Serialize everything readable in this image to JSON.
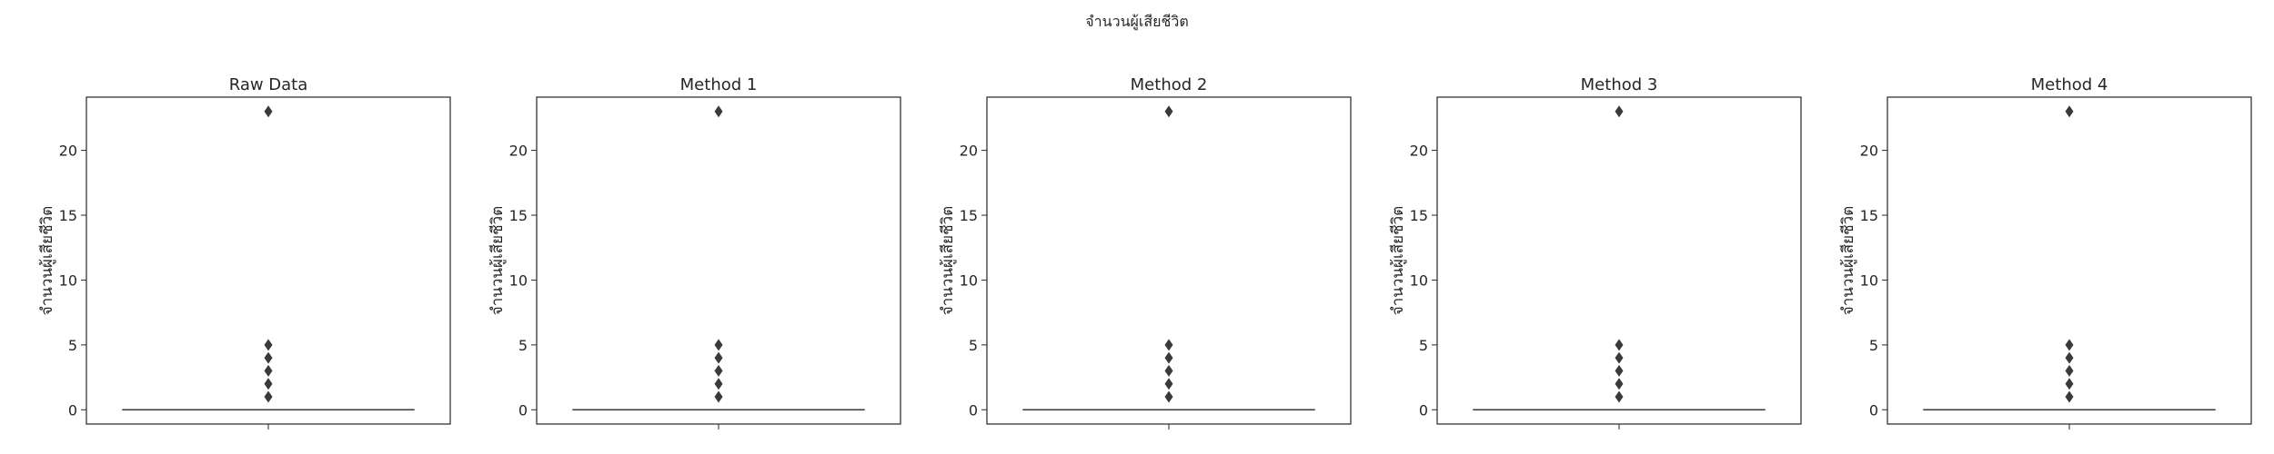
{
  "figure": {
    "suptitle": "จำนวนผู้เสียชีวิต"
  },
  "chart_data": [
    {
      "type": "box",
      "title": "Raw Data",
      "xlabel": "",
      "ylabel": "จำนวนผู้เสียชีวิต",
      "ylim": [
        -1.1,
        24.1
      ],
      "yticks": [
        0,
        5,
        10,
        15,
        20
      ],
      "box": {
        "min": 0,
        "q1": 0,
        "median": 0,
        "q3": 0,
        "max": 0
      },
      "outliers": [
        1,
        2,
        3,
        4,
        5,
        23
      ],
      "color": "#3a3a3a"
    },
    {
      "type": "box",
      "title": "Method 1",
      "xlabel": "",
      "ylabel": "จำนวนผู้เสียชีวิต",
      "ylim": [
        -1.1,
        24.1
      ],
      "yticks": [
        0,
        5,
        10,
        15,
        20
      ],
      "box": {
        "min": 0,
        "q1": 0,
        "median": 0,
        "q3": 0,
        "max": 0
      },
      "outliers": [
        1,
        2,
        3,
        4,
        5,
        23
      ],
      "color": "#3a3a3a"
    },
    {
      "type": "box",
      "title": "Method 2",
      "xlabel": "",
      "ylabel": "จำนวนผู้เสียชีวิต",
      "ylim": [
        -1.1,
        24.1
      ],
      "yticks": [
        0,
        5,
        10,
        15,
        20
      ],
      "box": {
        "min": 0,
        "q1": 0,
        "median": 0,
        "q3": 0,
        "max": 0
      },
      "outliers": [
        1,
        2,
        3,
        4,
        5,
        23
      ],
      "color": "#3a3a3a"
    },
    {
      "type": "box",
      "title": "Method 3",
      "xlabel": "",
      "ylabel": "จำนวนผู้เสียชีวิต",
      "ylim": [
        -1.1,
        24.1
      ],
      "yticks": [
        0,
        5,
        10,
        15,
        20
      ],
      "box": {
        "min": 0,
        "q1": 0,
        "median": 0,
        "q3": 0,
        "max": 0
      },
      "outliers": [
        1,
        2,
        3,
        4,
        5,
        23
      ],
      "color": "#3a3a3a"
    },
    {
      "type": "box",
      "title": "Method 4",
      "xlabel": "",
      "ylabel": "จำนวนผู้เสียชีวิต",
      "ylim": [
        -1.1,
        24.1
      ],
      "yticks": [
        0,
        5,
        10,
        15,
        20
      ],
      "box": {
        "min": 0,
        "q1": 0,
        "median": 0,
        "q3": 0,
        "max": 0
      },
      "outliers": [
        1,
        2,
        3,
        4,
        5,
        23
      ],
      "color": "#3a3a3a"
    }
  ]
}
